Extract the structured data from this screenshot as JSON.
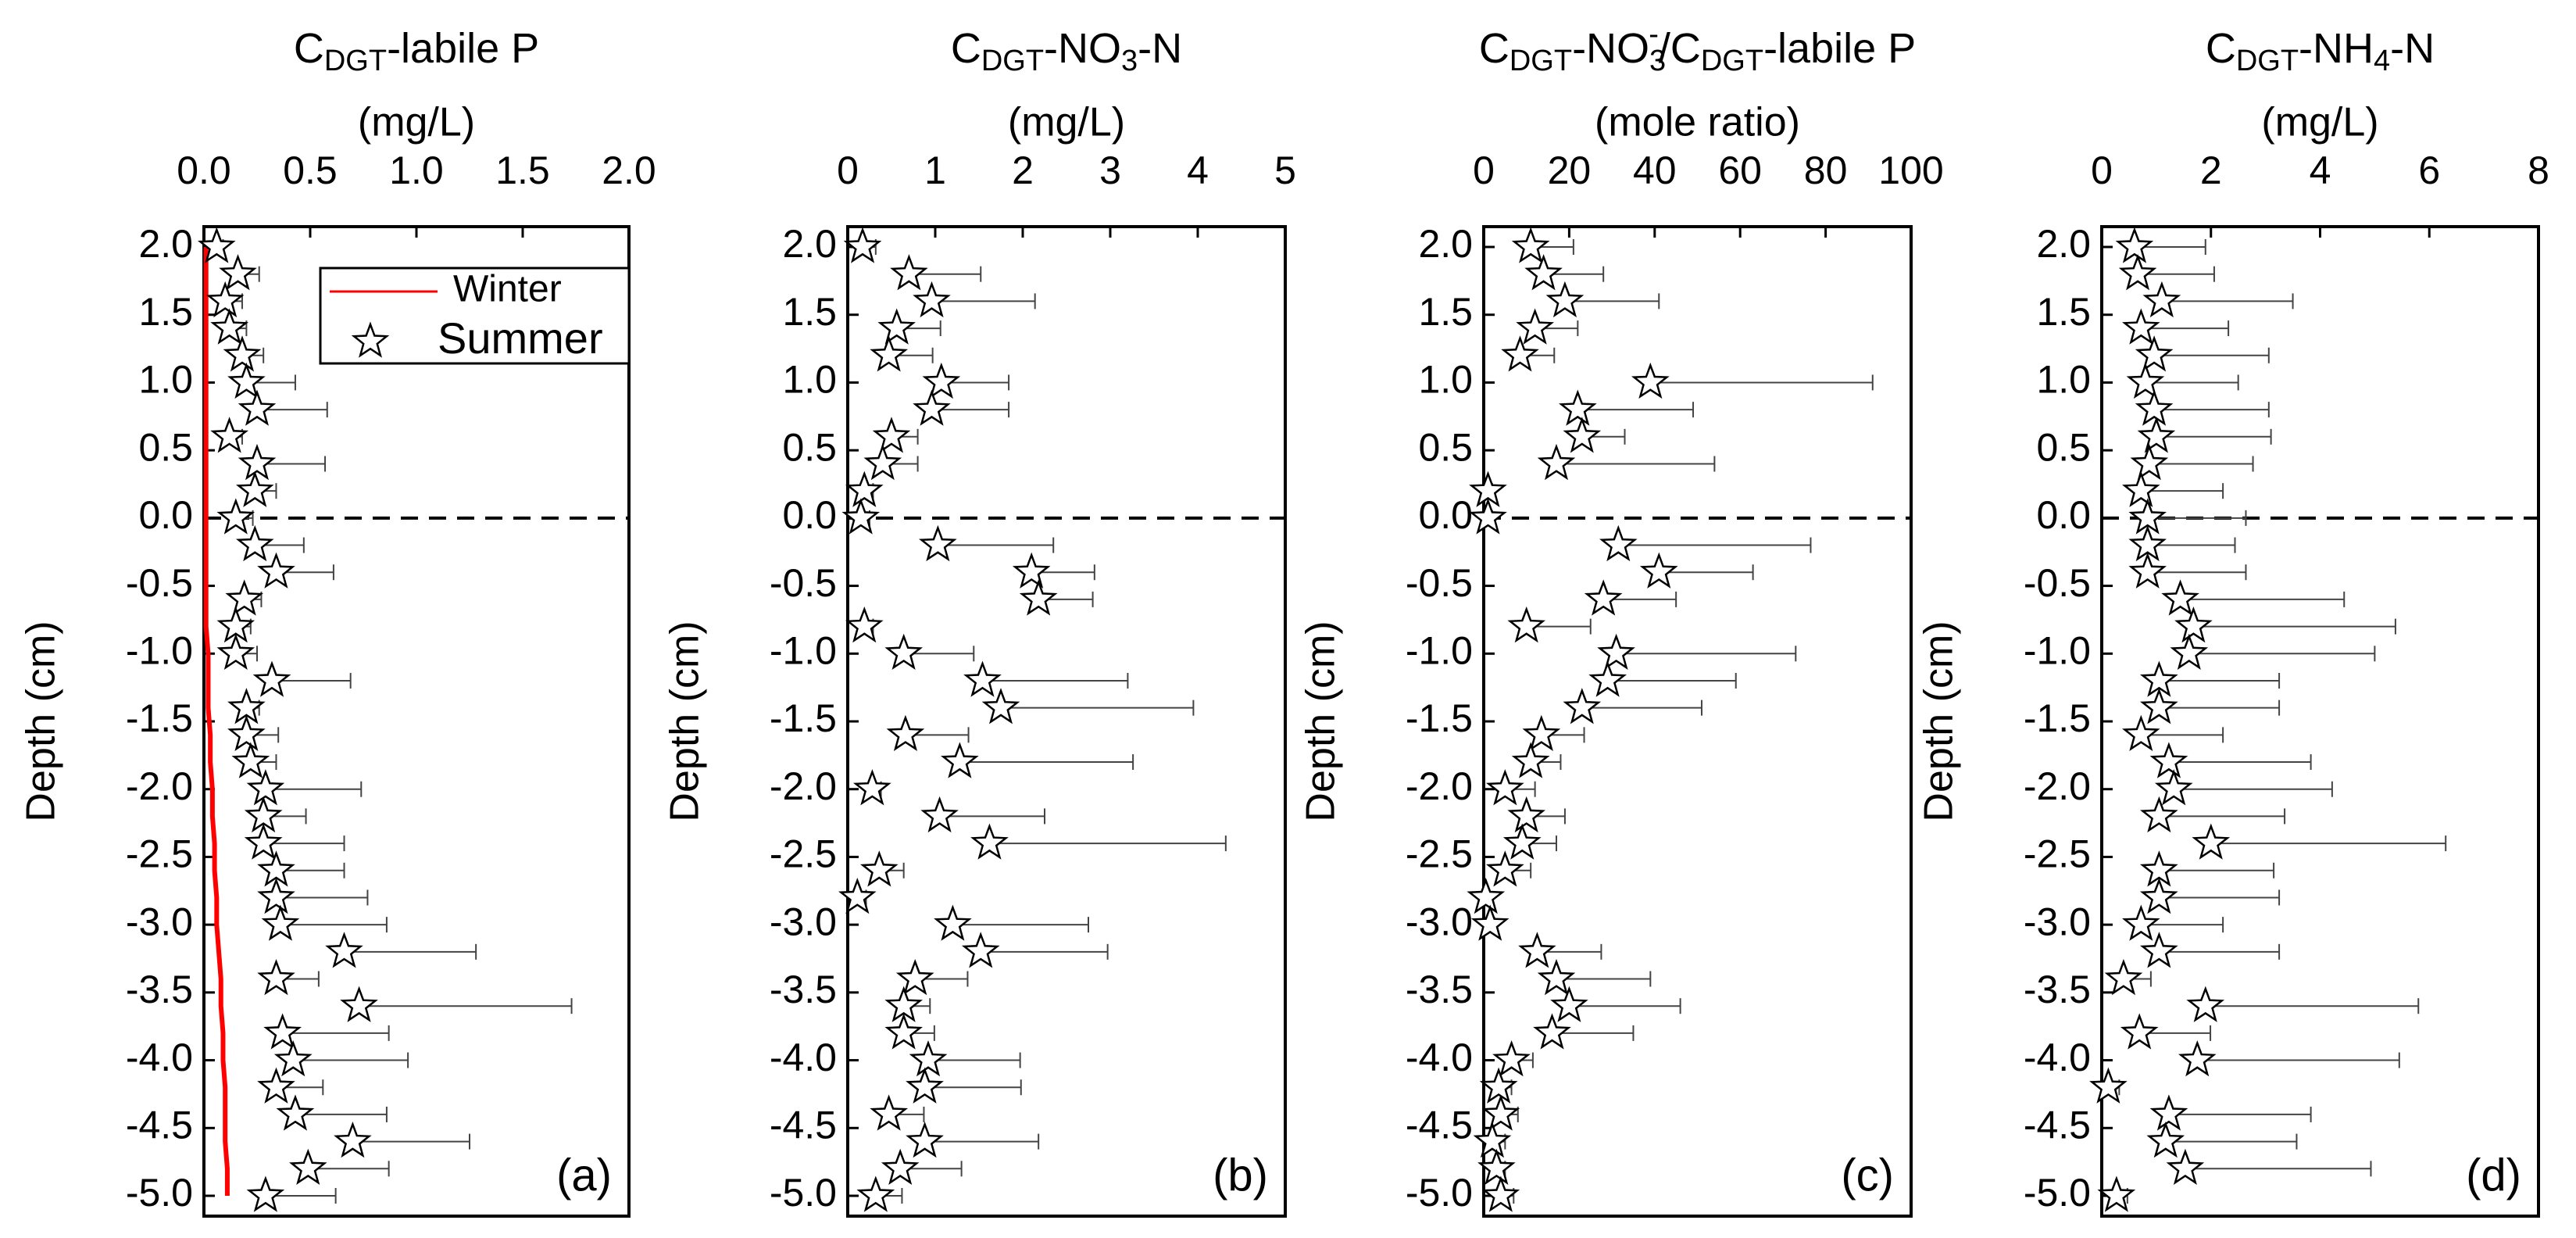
{
  "chart_data": [
    {
      "type": "scatter",
      "title": [
        {
          "text": "C"
        },
        {
          "text": "DGT",
          "sub": true
        },
        {
          "text": "-labile P"
        }
      ],
      "xlabel": "(mg/L)",
      "ylabel": "Depth (cm)",
      "panel_label": "(a)",
      "xlim": [
        0,
        2
      ],
      "xticks": [
        {
          "value": 0,
          "label": "0.0"
        },
        {
          "value": 0.5,
          "label": "0.5"
        },
        {
          "value": 1,
          "label": "1.0"
        },
        {
          "value": 1.5,
          "label": "1.5"
        },
        {
          "value": 2,
          "label": "2.0"
        }
      ],
      "ylim": [
        -5.15,
        2.15
      ],
      "yticks": [
        {
          "value": 2,
          "label": "2.0"
        },
        1.5,
        {
          "value": 1,
          "label": "1.0"
        },
        0.5,
        {
          "value": 0,
          "label": "0.0"
        },
        -0.5,
        {
          "value": -1,
          "label": "-1.0"
        },
        -1.5,
        {
          "value": -2,
          "label": "-2.0"
        },
        -2.5,
        {
          "value": -3,
          "label": "-3.0"
        },
        -3.5,
        {
          "value": -4,
          "label": "-4.0"
        },
        -4.5,
        {
          "value": -5,
          "label": "-5.0"
        }
      ],
      "reference_line": 0,
      "legend": "upper right",
      "y": [
        2,
        1.8,
        1.6,
        1.4,
        1.2,
        1,
        0.8,
        0.6,
        0.4,
        0.2,
        0,
        -0.2,
        -0.4,
        -0.6,
        -0.8,
        -1,
        -1.2,
        -1.4,
        -1.6,
        -1.8,
        -2,
        -2.2,
        -2.4,
        -2.6,
        -2.8,
        -3,
        -3.2,
        -3.4,
        -3.6,
        -3.8,
        -4,
        -4.2,
        -4.4,
        -4.6,
        -4.8,
        -5
      ],
      "series": [
        {
          "name": "Winter",
          "kind": "line",
          "color": "#ff0000",
          "x": [
            0.01,
            0.01,
            0.01,
            0.01,
            0.01,
            0.01,
            0.01,
            0.01,
            0.01,
            0.01,
            0.01,
            0.01,
            0.01,
            0.01,
            0.01,
            0.02,
            0.02,
            0.02,
            0.03,
            0.03,
            0.04,
            0.04,
            0.05,
            0.05,
            0.06,
            0.06,
            0.07,
            0.08,
            0.08,
            0.09,
            0.09,
            0.1,
            0.1,
            0.1,
            0.11,
            0.11
          ]
        },
        {
          "name": "Summer",
          "kind": "star",
          "color": "#000000",
          "x": [
            0.06,
            0.16,
            0.1,
            0.12,
            0.18,
            0.2,
            0.25,
            0.12,
            0.25,
            0.24,
            0.15,
            0.24,
            0.34,
            0.19,
            0.15,
            0.15,
            0.32,
            0.2,
            0.2,
            0.22,
            0.29,
            0.28,
            0.28,
            0.34,
            0.34,
            0.36,
            0.66,
            0.34,
            0.73,
            0.37,
            0.42,
            0.34,
            0.43,
            0.7,
            0.49,
            0.29
          ],
          "errors": [
            0.03,
            0.1,
            0.08,
            0.08,
            0.1,
            0.23,
            0.33,
            0.06,
            0.32,
            0.1,
            0.08,
            0.23,
            0.27,
            0.08,
            0.07,
            0.1,
            0.37,
            0.06,
            0.15,
            0.12,
            0.45,
            0.2,
            0.38,
            0.32,
            0.43,
            0.5,
            0.62,
            0.2,
            1.0,
            0.5,
            0.54,
            0.22,
            0.43,
            0.55,
            0.38,
            0.33
          ]
        }
      ]
    },
    {
      "type": "scatter",
      "title": [
        {
          "text": "C"
        },
        {
          "text": "DGT",
          "sub": true
        },
        {
          "text": "-NO"
        },
        {
          "text": "3",
          "sub": true
        },
        {
          "text": "-N"
        }
      ],
      "xlabel": "(mg/L)",
      "ylabel": "Depth (cm)",
      "panel_label": "(b)",
      "xlim": [
        0,
        5
      ],
      "xticks": [
        0,
        1,
        2,
        3,
        4,
        5
      ],
      "ylim": [
        -5.15,
        2.15
      ],
      "yticks": [
        {
          "value": 2,
          "label": "2.0"
        },
        1.5,
        {
          "value": 1,
          "label": "1.0"
        },
        0.5,
        {
          "value": 0,
          "label": "0.0"
        },
        -0.5,
        {
          "value": -1,
          "label": "-1.0"
        },
        -1.5,
        {
          "value": -2,
          "label": "-2.0"
        },
        -2.5,
        {
          "value": -3,
          "label": "-3.0"
        },
        -3.5,
        {
          "value": -4,
          "label": "-4.0"
        },
        -4.5,
        {
          "value": -5,
          "label": "-5.0"
        }
      ],
      "reference_line": 0,
      "y": [
        2,
        1.8,
        1.6,
        1.4,
        1.2,
        1,
        0.8,
        0.6,
        0.4,
        0.2,
        0,
        -0.2,
        -0.4,
        -0.6,
        -0.8,
        -1,
        -1.2,
        -1.4,
        -1.6,
        -1.8,
        -2,
        -2.2,
        -2.4,
        -2.6,
        -2.8,
        -3,
        -3.2,
        -3.4,
        -3.6,
        -3.8,
        -4,
        -4.2,
        -4.4,
        -4.6,
        -4.8,
        -5
      ],
      "series": [
        {
          "kind": "star",
          "color": "#000000",
          "x": [
            0.17,
            0.7,
            0.96,
            0.56,
            0.47,
            1.07,
            0.96,
            0.5,
            0.4,
            0.19,
            0.15,
            1.03,
            2.1,
            2.18,
            0.19,
            0.64,
            1.54,
            1.75,
            0.66,
            1.28,
            0.28,
            1.05,
            1.62,
            0.36,
            0.11,
            1.2,
            1.52,
            0.77,
            0.64,
            0.64,
            0.92,
            0.88,
            0.47,
            0.88,
            0.6,
            0.32
          ],
          "errors": [
            0.15,
            0.82,
            1.18,
            0.5,
            0.5,
            0.77,
            0.88,
            0.3,
            0.4,
            0.1,
            0.1,
            1.32,
            0.72,
            0.62,
            0.1,
            0.8,
            1.66,
            2.2,
            0.72,
            1.98,
            0.1,
            1.2,
            2.7,
            0.28,
            0.1,
            1.55,
            1.45,
            0.6,
            0.3,
            0.35,
            1.05,
            1.1,
            0.4,
            1.3,
            0.7,
            0.3
          ]
        }
      ]
    },
    {
      "type": "scatter",
      "title": [
        {
          "text": "C"
        },
        {
          "text": "DGT",
          "sub": true
        },
        {
          "text": "-NO"
        },
        {
          "text": "3",
          "sub": true
        },
        {
          "text": "-",
          "sup": true
        },
        {
          "text": "/C"
        },
        {
          "text": "DGT",
          "sub": true
        },
        {
          "text": "-labile P"
        }
      ],
      "xlabel": "(mole ratio)",
      "ylabel": "Depth (cm)",
      "panel_label": "(c)",
      "xlim": [
        0,
        100
      ],
      "xticks": [
        0,
        20,
        40,
        60,
        80,
        100
      ],
      "ylim": [
        -5.15,
        2.15
      ],
      "yticks": [
        {
          "value": 2,
          "label": "2.0"
        },
        1.5,
        {
          "value": 1,
          "label": "1.0"
        },
        0.5,
        {
          "value": 0,
          "label": "0.0"
        },
        -0.5,
        {
          "value": -1,
          "label": "-1.0"
        },
        -1.5,
        {
          "value": -2,
          "label": "-2.0"
        },
        -2.5,
        {
          "value": -3,
          "label": "-3.0"
        },
        -3.5,
        {
          "value": -4,
          "label": "-4.0"
        },
        -4.5,
        {
          "value": -5,
          "label": "-5.0"
        }
      ],
      "reference_line": 0,
      "y": [
        2,
        1.8,
        1.6,
        1.4,
        1.2,
        1,
        0.8,
        0.6,
        0.4,
        0.2,
        0,
        -0.2,
        -0.4,
        -0.6,
        -0.8,
        -1,
        -1.2,
        -1.4,
        -1.6,
        -1.8,
        -2,
        -2.2,
        -2.4,
        -2.6,
        -2.8,
        -3,
        -3.2,
        -3.4,
        -3.6,
        -3.8,
        -4,
        -4.2,
        -4.4,
        -4.6,
        -4.8,
        -5
      ],
      "series": [
        {
          "kind": "star",
          "color": "#000000",
          "x": [
            11,
            14,
            19,
            12,
            8.5,
            39,
            22,
            23,
            17,
            1,
            1,
            31.5,
            41,
            28,
            10,
            31,
            29,
            23,
            13.5,
            11,
            5,
            10,
            9,
            5,
            0.5,
            1.5,
            12.5,
            17,
            20,
            16,
            6.5,
            3.5,
            4,
            2,
            3,
            4
          ],
          "errors": [
            10,
            14,
            22,
            10,
            8,
            52,
            27,
            10,
            37,
            1,
            1,
            45,
            22,
            17,
            15,
            42,
            30,
            28,
            10,
            7,
            7,
            9,
            8,
            6,
            0.5,
            1,
            15,
            22,
            26,
            19,
            5,
            3,
            4,
            3,
            2,
            3
          ]
        }
      ]
    },
    {
      "type": "scatter",
      "title": [
        {
          "text": "C"
        },
        {
          "text": "DGT",
          "sub": true
        },
        {
          "text": "-NH"
        },
        {
          "text": "4",
          "sub": true
        },
        {
          "text": "-N"
        }
      ],
      "xlabel": "(mg/L)",
      "ylabel": "Depth (cm)",
      "panel_label": "(d)",
      "xlim": [
        0,
        8
      ],
      "xticks": [
        0,
        2,
        4,
        6,
        8
      ],
      "ylim": [
        -5.15,
        2.15
      ],
      "yticks": [
        {
          "value": 2,
          "label": "2.0"
        },
        1.5,
        {
          "value": 1,
          "label": "1.0"
        },
        0.5,
        {
          "value": 0,
          "label": "0.0"
        },
        -0.5,
        {
          "value": -1,
          "label": "-1.0"
        },
        -1.5,
        {
          "value": -2,
          "label": "-2.0"
        },
        -2.5,
        {
          "value": -3,
          "label": "-3.0"
        },
        -3.5,
        {
          "value": -4,
          "label": "-4.0"
        },
        -4.5,
        {
          "value": -5,
          "label": "-5.0"
        }
      ],
      "reference_line": 0,
      "y": [
        2,
        1.8,
        1.6,
        1.4,
        1.2,
        1,
        0.8,
        0.6,
        0.4,
        0.2,
        0,
        -0.2,
        -0.4,
        -0.6,
        -0.8,
        -1,
        -1.2,
        -1.4,
        -1.6,
        -1.8,
        -2,
        -2.2,
        -2.4,
        -2.6,
        -2.8,
        -3,
        -3.2,
        -3.4,
        -3.6,
        -3.8,
        -4,
        -4.2,
        -4.4,
        -4.6,
        -4.8,
        -5
      ],
      "series": [
        {
          "kind": "star",
          "color": "#000000",
          "x": [
            0.6,
            0.66,
            1.1,
            0.72,
            0.96,
            0.8,
            0.96,
            1.0,
            0.87,
            0.72,
            0.84,
            0.84,
            0.84,
            1.44,
            1.68,
            1.6,
            1.05,
            1.05,
            0.72,
            1.23,
            1.32,
            1.05,
            2.0,
            1.05,
            1.05,
            0.72,
            1.05,
            0.4,
            1.9,
            0.69,
            1.75,
            0.12,
            1.23,
            1.17,
            1.53,
            0.27
          ],
          "errors": [
            1.3,
            1.4,
            2.4,
            1.6,
            2.1,
            1.7,
            2.1,
            2.1,
            1.9,
            1.5,
            1.8,
            1.6,
            1.8,
            3.0,
            3.7,
            3.4,
            2.2,
            2.2,
            1.5,
            2.6,
            2.9,
            2.3,
            4.3,
            2.1,
            2.2,
            1.5,
            2.2,
            0.5,
            3.9,
            1.3,
            3.7,
            0.2,
            2.6,
            2.4,
            3.4,
            0.2
          ]
        }
      ]
    }
  ]
}
